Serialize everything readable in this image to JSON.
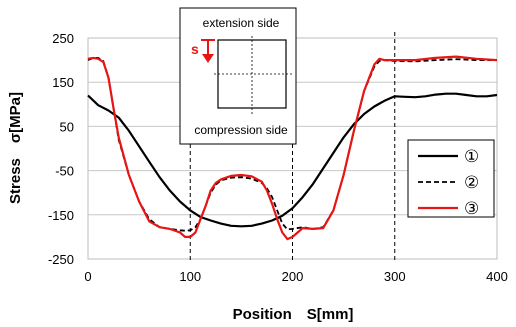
{
  "chart_data": {
    "type": "line",
    "xlabel": "Position　S[mm]",
    "ylabel": "Stress　σ[MPa]",
    "xlim": [
      0,
      400
    ],
    "ylim": [
      -250,
      250
    ],
    "x_ticks": [
      "0",
      "100",
      "200",
      "300",
      "400"
    ],
    "y_ticks": [
      "250",
      "150",
      "50",
      "-50",
      "-150",
      "-250"
    ],
    "grid": "horizontal",
    "legend_position": "right",
    "reference_lines_x": [
      100,
      200,
      300
    ],
    "inset": {
      "top_label": "extension side",
      "bottom_label": "compression side",
      "arrow_label": "s"
    },
    "series": [
      {
        "name": "①",
        "color": "#000000",
        "dash": "solid",
        "x": [
          0,
          10,
          20,
          30,
          40,
          50,
          60,
          70,
          80,
          90,
          100,
          110,
          120,
          130,
          140,
          150,
          160,
          170,
          180,
          190,
          200,
          210,
          220,
          230,
          240,
          250,
          260,
          270,
          280,
          290,
          300,
          310,
          320,
          330,
          340,
          350,
          360,
          370,
          380,
          390,
          400
        ],
        "values": [
          120,
          98,
          86,
          70,
          40,
          5,
          -30,
          -65,
          -95,
          -120,
          -140,
          -155,
          -163,
          -170,
          -175,
          -176,
          -175,
          -170,
          -163,
          -152,
          -135,
          -110,
          -80,
          -45,
          -10,
          25,
          55,
          78,
          95,
          108,
          118,
          117,
          116,
          118,
          122,
          124,
          124,
          121,
          118,
          118,
          121
        ]
      },
      {
        "name": "②",
        "color": "#000000",
        "dash": "dashed",
        "x": [
          0,
          5,
          10,
          15,
          20,
          25,
          30,
          40,
          50,
          60,
          70,
          80,
          90,
          95,
          100,
          105,
          110,
          115,
          120,
          125,
          130,
          140,
          150,
          160,
          170,
          175,
          180,
          185,
          190,
          195,
          200,
          210,
          220,
          230,
          240,
          250,
          260,
          270,
          280,
          285,
          290,
          300,
          320,
          340,
          360,
          380,
          400
        ],
        "values": [
          200,
          205,
          205,
          198,
          160,
          90,
          20,
          -60,
          -120,
          -160,
          -178,
          -182,
          -185,
          -186,
          -185,
          -178,
          -160,
          -130,
          -100,
          -82,
          -72,
          -66,
          -65,
          -68,
          -78,
          -90,
          -110,
          -140,
          -170,
          -183,
          -182,
          -178,
          -182,
          -178,
          -140,
          -60,
          40,
          130,
          185,
          198,
          200,
          198,
          197,
          200,
          202,
          200,
          200
        ]
      },
      {
        "name": "③",
        "color": "#e81515",
        "dash": "solid",
        "x": [
          0,
          5,
          10,
          15,
          20,
          25,
          30,
          40,
          50,
          60,
          70,
          80,
          90,
          95,
          100,
          105,
          110,
          115,
          120,
          125,
          130,
          140,
          150,
          160,
          170,
          175,
          180,
          185,
          190,
          195,
          200,
          205,
          210,
          220,
          230,
          240,
          250,
          260,
          270,
          280,
          285,
          290,
          300,
          320,
          340,
          360,
          380,
          400
        ],
        "values": [
          203,
          205,
          203,
          196,
          160,
          90,
          25,
          -60,
          -120,
          -165,
          -178,
          -182,
          -190,
          -200,
          -200,
          -190,
          -160,
          -130,
          -95,
          -78,
          -70,
          -62,
          -60,
          -63,
          -75,
          -95,
          -125,
          -160,
          -190,
          -205,
          -200,
          -190,
          -180,
          -182,
          -180,
          -140,
          -60,
          40,
          130,
          190,
          203,
          200,
          200,
          200,
          205,
          208,
          203,
          200
        ]
      }
    ]
  }
}
